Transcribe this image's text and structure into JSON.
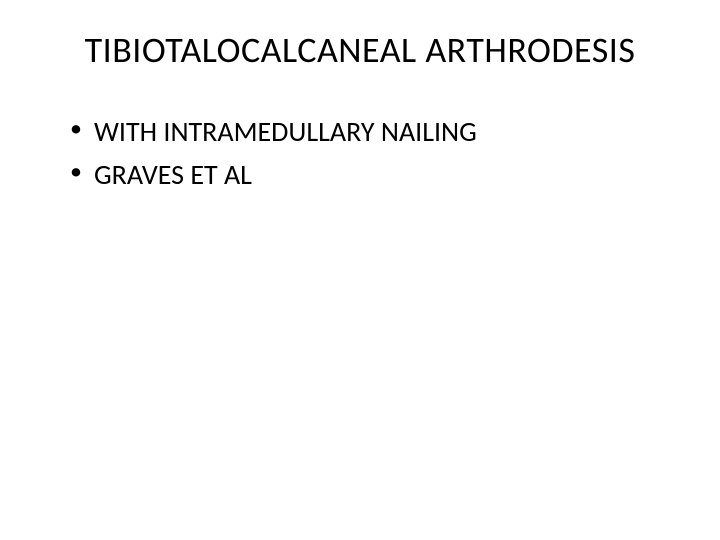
{
  "slide": {
    "title": "TIBIOTALOCALCANEAL ARTHRODESIS",
    "bullets": [
      "WITH INTRAMEDULLARY NAILING",
      "GRAVES ET AL"
    ],
    "background_color": "#ffffff",
    "text_color": "#000000",
    "title_fontsize": 36,
    "bullet_fontsize": 28,
    "font_family": "Calibri, Arial, sans-serif"
  }
}
